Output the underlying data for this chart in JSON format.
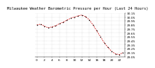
{
  "title": "Milwaukee Weather Barometric Pressure per Hour (Last 24 Hours)",
  "hours": [
    0,
    1,
    2,
    3,
    4,
    5,
    6,
    7,
    8,
    9,
    10,
    11,
    12,
    13,
    14,
    15,
    16,
    17,
    18,
    19,
    20,
    21,
    22,
    23
  ],
  "pressure": [
    29.85,
    29.87,
    29.82,
    29.78,
    29.8,
    29.83,
    29.88,
    29.92,
    29.97,
    30.02,
    30.05,
    30.08,
    30.1,
    30.06,
    29.98,
    29.85,
    29.7,
    29.55,
    29.4,
    29.28,
    29.18,
    29.12,
    29.1,
    29.15
  ],
  "line_color": "#cc0000",
  "marker_color": "#000000",
  "grid_color": "#bbbbbb",
  "bg_color": "#ffffff",
  "ylim_min": 29.05,
  "ylim_max": 30.15,
  "title_fontsize": 4.0,
  "tick_fontsize": 3.2,
  "marker_size": 1.5,
  "line_width": 0.6,
  "xtick_interval": 2
}
